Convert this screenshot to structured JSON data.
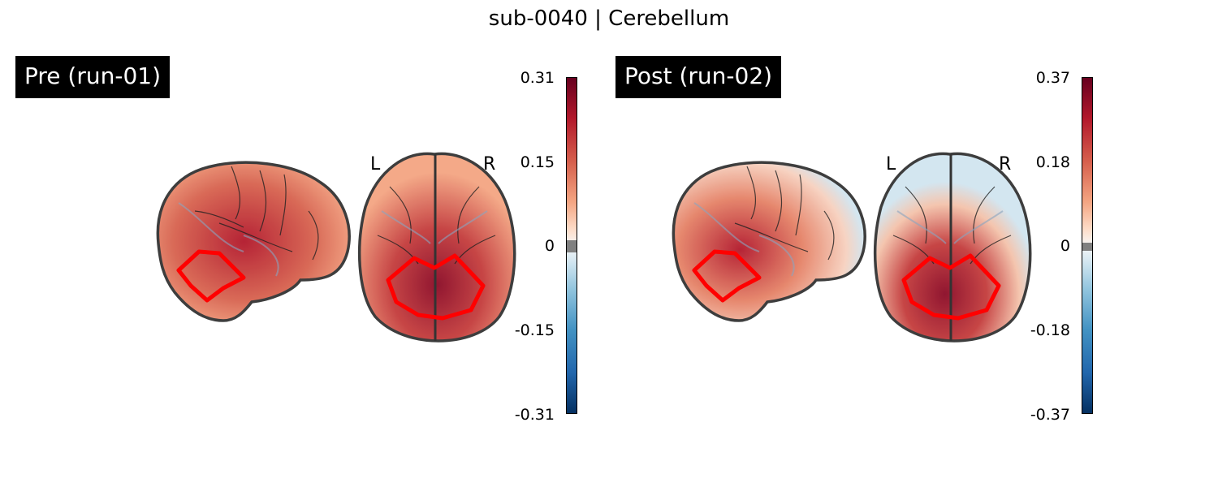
{
  "figure": {
    "title": "sub-0040 | Cerebellum"
  },
  "colormap": {
    "high": "#67001f",
    "mid": "#f7f7f7",
    "low": "#053061",
    "roi_outline": "#ff0000",
    "zero_band": "#808080"
  },
  "panels": [
    {
      "label": "Pre (run-01)",
      "hemisphere_left": "L",
      "hemisphere_right": "R",
      "colorbar_ticks": [
        "0.31",
        "0.15",
        "0",
        "-0.15",
        "-0.31"
      ],
      "vmin": -0.31,
      "vmax": 0.31
    },
    {
      "label": "Post (run-02)",
      "hemisphere_left": "L",
      "hemisphere_right": "R",
      "colorbar_ticks": [
        "0.37",
        "0.18",
        "0",
        "-0.18",
        "-0.37"
      ],
      "vmin": -0.37,
      "vmax": 0.37
    }
  ]
}
